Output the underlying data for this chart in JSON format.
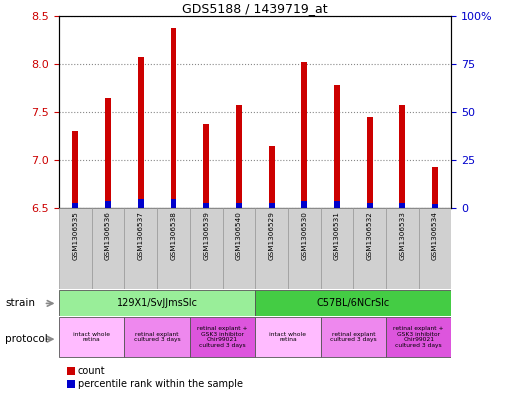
{
  "title": "GDS5188 / 1439719_at",
  "samples": [
    "GSM1306535",
    "GSM1306536",
    "GSM1306537",
    "GSM1306538",
    "GSM1306539",
    "GSM1306540",
    "GSM1306529",
    "GSM1306530",
    "GSM1306531",
    "GSM1306532",
    "GSM1306533",
    "GSM1306534"
  ],
  "count_values": [
    7.3,
    7.65,
    8.07,
    8.37,
    7.38,
    7.57,
    7.15,
    8.02,
    7.78,
    7.45,
    7.57,
    6.93
  ],
  "percentile_values": [
    3,
    4,
    5,
    5,
    3,
    3,
    3,
    4,
    4,
    3,
    3,
    2
  ],
  "y_min": 6.5,
  "y_max": 8.5,
  "y_ticks": [
    6.5,
    7.0,
    7.5,
    8.0,
    8.5
  ],
  "right_y_ticks": [
    0,
    25,
    50,
    75,
    100
  ],
  "right_y_tick_labels": [
    "0",
    "25",
    "50",
    "75",
    "100%"
  ],
  "bar_color_red": "#cc0000",
  "bar_color_blue": "#0000cc",
  "bar_width": 0.18,
  "strain_groups": [
    {
      "label": "129X1/SvJJmsSlc",
      "start": 0,
      "end": 5,
      "color": "#99ee99"
    },
    {
      "label": "C57BL/6NCrSlc",
      "start": 6,
      "end": 11,
      "color": "#44cc44"
    }
  ],
  "protocol_groups": [
    {
      "label": "intact whole\nretina",
      "start": 0,
      "end": 1,
      "color": "#ffbbff"
    },
    {
      "label": "retinal explant\ncultured 3 days",
      "start": 2,
      "end": 3,
      "color": "#ee88ee"
    },
    {
      "label": "retinal explant +\nGSK3 inhibitor\nChir99021\ncultured 3 days",
      "start": 4,
      "end": 5,
      "color": "#dd55dd"
    },
    {
      "label": "intact whole\nretina",
      "start": 6,
      "end": 7,
      "color": "#ffbbff"
    },
    {
      "label": "retinal explant\ncultured 3 days",
      "start": 8,
      "end": 9,
      "color": "#ee88ee"
    },
    {
      "label": "retinal explant +\nGSK3 inhibitor\nChir99021\ncultured 3 days",
      "start": 10,
      "end": 11,
      "color": "#dd55dd"
    }
  ],
  "sample_box_color": "#d0d0d0",
  "sample_box_edge": "#999999",
  "strain_label": "strain",
  "protocol_label": "protocol",
  "legend_count_label": "count",
  "legend_pct_label": "percentile rank within the sample",
  "grid_color": "#888888",
  "tick_label_color_left": "#cc0000",
  "tick_label_color_right": "#0000cc"
}
